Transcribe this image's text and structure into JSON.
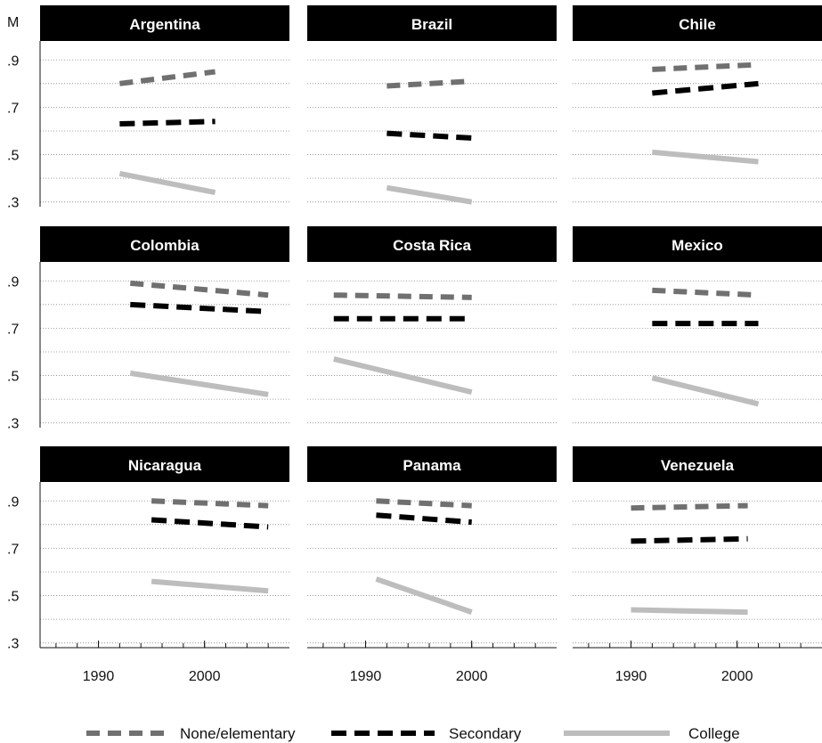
{
  "chart_data": {
    "type": "line",
    "layout": "3x3 small multiples",
    "ylabel": "M",
    "y_ticks": [
      ".9",
      ".7",
      ".5",
      ".3"
    ],
    "y_tick_values": [
      0.9,
      0.7,
      0.5,
      0.3
    ],
    "ylim": [
      0.28,
      0.98
    ],
    "x_ticks": [
      "1990",
      "2000"
    ],
    "x_tick_values": [
      1990,
      2000
    ],
    "xlim": [
      1984.5,
      2008
    ],
    "grid": "horizontal dotted at every 0.1",
    "legend_position": "bottom",
    "legend": [
      {
        "name": "None/elementary",
        "style": "dashed",
        "color": "#707070"
      },
      {
        "name": "Secondary",
        "style": "dashed",
        "color": "#000000"
      },
      {
        "name": "College",
        "style": "solid",
        "color": "#bdbdbd"
      }
    ],
    "panels": [
      {
        "title": "Argentina",
        "series": [
          {
            "name": "None/elementary",
            "x": [
              1992,
              2001
            ],
            "y": [
              0.8,
              0.85
            ]
          },
          {
            "name": "Secondary",
            "x": [
              1992,
              2001
            ],
            "y": [
              0.63,
              0.64
            ]
          },
          {
            "name": "College",
            "x": [
              1992,
              2001
            ],
            "y": [
              0.42,
              0.34
            ]
          }
        ]
      },
      {
        "title": "Brazil",
        "series": [
          {
            "name": "None/elementary",
            "x": [
              1992,
              2000
            ],
            "y": [
              0.79,
              0.81
            ]
          },
          {
            "name": "Secondary",
            "x": [
              1992,
              2000
            ],
            "y": [
              0.59,
              0.57
            ]
          },
          {
            "name": "College",
            "x": [
              1992,
              2000
            ],
            "y": [
              0.36,
              0.3
            ]
          }
        ]
      },
      {
        "title": "Chile",
        "series": [
          {
            "name": "None/elementary",
            "x": [
              1992,
              2002
            ],
            "y": [
              0.86,
              0.88
            ]
          },
          {
            "name": "Secondary",
            "x": [
              1992,
              2002
            ],
            "y": [
              0.76,
              0.8
            ]
          },
          {
            "name": "College",
            "x": [
              1992,
              2002
            ],
            "y": [
              0.51,
              0.47
            ]
          }
        ]
      },
      {
        "title": "Colombia",
        "series": [
          {
            "name": "None/elementary",
            "x": [
              1993,
              2006
            ],
            "y": [
              0.89,
              0.84
            ]
          },
          {
            "name": "Secondary",
            "x": [
              1993,
              2006
            ],
            "y": [
              0.8,
              0.77
            ]
          },
          {
            "name": "College",
            "x": [
              1993,
              2006
            ],
            "y": [
              0.51,
              0.42
            ]
          }
        ]
      },
      {
        "title": "Costa Rica",
        "series": [
          {
            "name": "None/elementary",
            "x": [
              1987,
              2000
            ],
            "y": [
              0.84,
              0.83
            ]
          },
          {
            "name": "Secondary",
            "x": [
              1987,
              2000
            ],
            "y": [
              0.74,
              0.74
            ]
          },
          {
            "name": "College",
            "x": [
              1987,
              2000
            ],
            "y": [
              0.57,
              0.43
            ]
          }
        ]
      },
      {
        "title": "Mexico",
        "series": [
          {
            "name": "None/elementary",
            "x": [
              1992,
              2002
            ],
            "y": [
              0.86,
              0.84
            ]
          },
          {
            "name": "Secondary",
            "x": [
              1992,
              2002
            ],
            "y": [
              0.72,
              0.72
            ]
          },
          {
            "name": "College",
            "x": [
              1992,
              2002
            ],
            "y": [
              0.49,
              0.38
            ]
          }
        ]
      },
      {
        "title": "Nicaragua",
        "series": [
          {
            "name": "None/elementary",
            "x": [
              1995,
              2006
            ],
            "y": [
              0.9,
              0.88
            ]
          },
          {
            "name": "Secondary",
            "x": [
              1995,
              2006
            ],
            "y": [
              0.82,
              0.79
            ]
          },
          {
            "name": "College",
            "x": [
              1995,
              2006
            ],
            "y": [
              0.56,
              0.52
            ]
          }
        ]
      },
      {
        "title": "Panama",
        "series": [
          {
            "name": "None/elementary",
            "x": [
              1991,
              2000
            ],
            "y": [
              0.9,
              0.88
            ]
          },
          {
            "name": "Secondary",
            "x": [
              1991,
              2000
            ],
            "y": [
              0.84,
              0.81
            ]
          },
          {
            "name": "College",
            "x": [
              1991,
              2000
            ],
            "y": [
              0.57,
              0.43
            ]
          }
        ]
      },
      {
        "title": "Venezuela",
        "series": [
          {
            "name": "None/elementary",
            "x": [
              1990,
              2001
            ],
            "y": [
              0.87,
              0.88
            ]
          },
          {
            "name": "Secondary",
            "x": [
              1990,
              2001
            ],
            "y": [
              0.73,
              0.74
            ]
          },
          {
            "name": "College",
            "x": [
              1990,
              2001
            ],
            "y": [
              0.44,
              0.43
            ]
          }
        ]
      }
    ]
  }
}
